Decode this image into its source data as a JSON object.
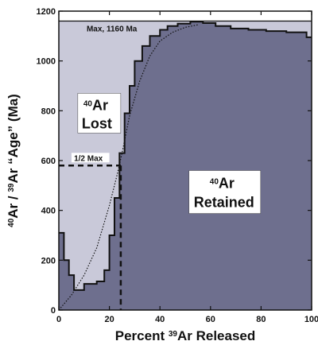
{
  "chart_data": {
    "type": "area",
    "xlabel": {
      "pre": "Percent ",
      "sup": "39",
      "post": "Ar Released"
    },
    "ylabel": {
      "sup1": "40",
      "mid": "Ar / ",
      "sup2": "39",
      "post": "Ar “Age” (Ma)"
    },
    "xlim": [
      0,
      100
    ],
    "ylim": [
      0,
      1200
    ],
    "xticks": [
      0,
      20,
      40,
      60,
      80,
      100
    ],
    "yticks": [
      0,
      200,
      400,
      600,
      800,
      1000,
      1200
    ],
    "grid": false,
    "max_age": 1160,
    "half_max_age": 580,
    "half_max_x": 24.5,
    "spectrum": [
      [
        0,
        310
      ],
      [
        2,
        310
      ],
      [
        2,
        200
      ],
      [
        4,
        200
      ],
      [
        4,
        140
      ],
      [
        6,
        140
      ],
      [
        6,
        80
      ],
      [
        10,
        80
      ],
      [
        10,
        105
      ],
      [
        15,
        105
      ],
      [
        15,
        115
      ],
      [
        18,
        115
      ],
      [
        18,
        160
      ],
      [
        20,
        160
      ],
      [
        20,
        300
      ],
      [
        22,
        300
      ],
      [
        22,
        450
      ],
      [
        24,
        450
      ],
      [
        24,
        630
      ],
      [
        26,
        630
      ],
      [
        26,
        790
      ],
      [
        28,
        790
      ],
      [
        28,
        900
      ],
      [
        30,
        900
      ],
      [
        30,
        1000
      ],
      [
        33,
        1000
      ],
      [
        33,
        1060
      ],
      [
        36,
        1060
      ],
      [
        36,
        1100
      ],
      [
        40,
        1100
      ],
      [
        40,
        1125
      ],
      [
        43,
        1125
      ],
      [
        43,
        1140
      ],
      [
        47,
        1140
      ],
      [
        47,
        1150
      ],
      [
        52,
        1150
      ],
      [
        52,
        1158
      ],
      [
        57,
        1158
      ],
      [
        57,
        1152
      ],
      [
        62,
        1152
      ],
      [
        62,
        1140
      ],
      [
        68,
        1140
      ],
      [
        68,
        1130
      ],
      [
        75,
        1130
      ],
      [
        75,
        1125
      ],
      [
        82,
        1125
      ],
      [
        82,
        1120
      ],
      [
        90,
        1120
      ],
      [
        90,
        1115
      ],
      [
        98,
        1115
      ],
      [
        98,
        1095
      ],
      [
        100,
        1095
      ]
    ],
    "retention_curve": [
      [
        0,
        0
      ],
      [
        5,
        60
      ],
      [
        10,
        140
      ],
      [
        15,
        250
      ],
      [
        20,
        420
      ],
      [
        23,
        540
      ],
      [
        25,
        630
      ],
      [
        28,
        780
      ],
      [
        32,
        920
      ],
      [
        36,
        1020
      ],
      [
        40,
        1080
      ],
      [
        45,
        1115
      ],
      [
        50,
        1135
      ],
      [
        55,
        1145
      ]
    ],
    "annotations": {
      "max_label": "Max, 1160 Ma",
      "half_label": "1/2 Max",
      "lost": {
        "sup": "40",
        "name": "Ar",
        "word": "Lost"
      },
      "retained": {
        "sup": "40",
        "name": "Ar",
        "word": "Retained"
      }
    },
    "colors": {
      "lost_fill": "#c9c9d9",
      "retained_fill": "#6e6f8e",
      "line": "#111111"
    }
  }
}
